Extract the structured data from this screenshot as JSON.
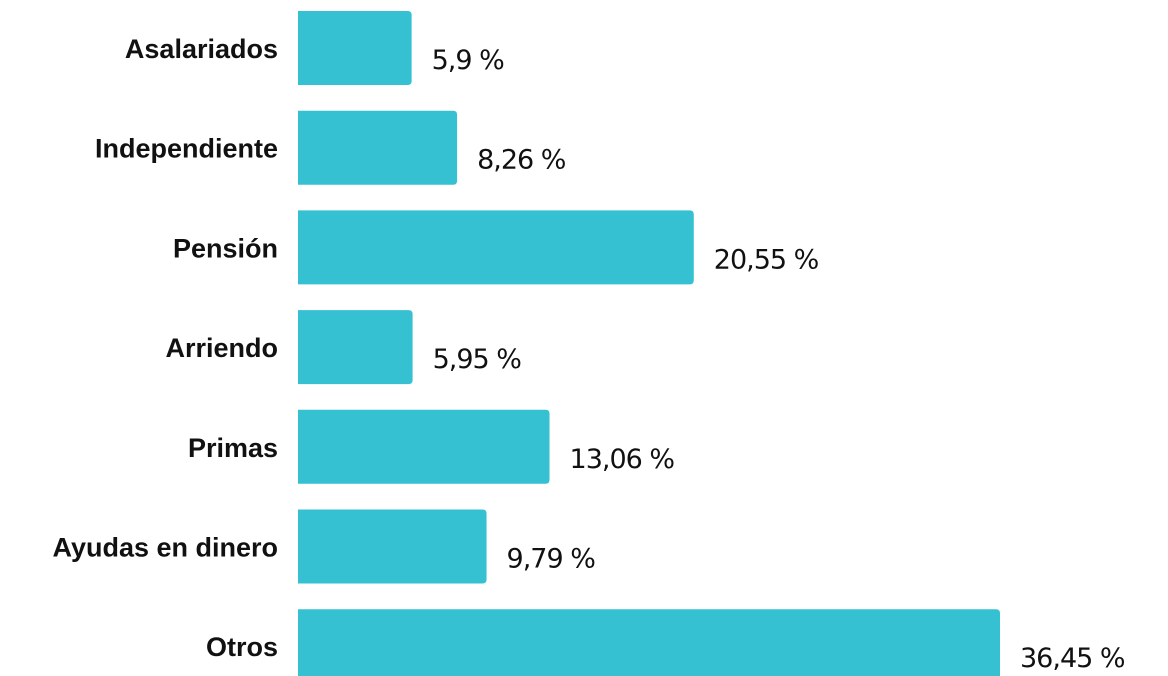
{
  "chart_data": {
    "type": "bar",
    "orientation": "horizontal",
    "categories": [
      "Asalariados",
      "Independiente",
      "Pensión",
      "Arriendo",
      "Primas",
      "Ayudas en dinero",
      "Otros"
    ],
    "values": [
      5.9,
      8.26,
      20.55,
      5.95,
      13.06,
      9.79,
      36.45
    ],
    "value_labels": [
      "5,9 %",
      "8,26 %",
      "20,55 %",
      "5,95 %",
      "13,06 %",
      "9,79 %",
      "36,45 %"
    ],
    "title": "",
    "xlabel": "",
    "ylabel": "",
    "xlim": [
      0,
      36.45
    ],
    "grid": false,
    "legend": "none",
    "bar_color": "#35C1D2"
  }
}
